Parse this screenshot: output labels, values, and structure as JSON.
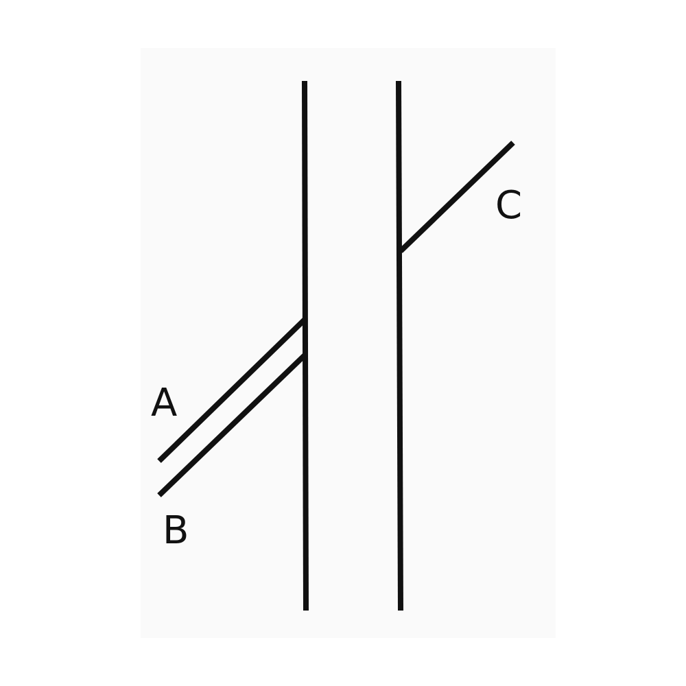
{
  "figure": {
    "labels": {
      "a": "A",
      "b": "B",
      "c": "C"
    },
    "line_color": "#111111",
    "background_color": "#ffffff"
  }
}
